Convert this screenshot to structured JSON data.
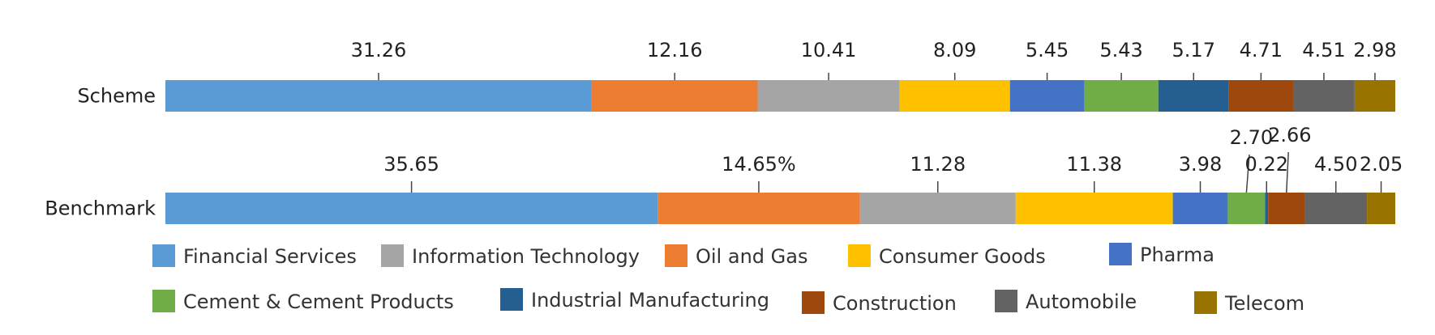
{
  "chart_data": {
    "type": "bar",
    "orientation": "horizontal",
    "stacked": true,
    "categories": [
      "Scheme",
      "Benchmark"
    ],
    "series": [
      {
        "name": "Financial Services",
        "color": "#5B9BD5",
        "values": [
          31.26,
          35.65
        ]
      },
      {
        "name": "Oil and Gas",
        "color": "#ED7D31",
        "values": [
          12.16,
          14.65
        ]
      },
      {
        "name": "Information Technology",
        "color": "#A5A5A5",
        "values": [
          10.41,
          11.28
        ]
      },
      {
        "name": "Consumer Goods",
        "color": "#FFC000",
        "values": [
          8.09,
          11.38
        ]
      },
      {
        "name": "Pharma",
        "color": "#4472C4",
        "values": [
          5.45,
          3.98
        ]
      },
      {
        "name": "Cement & Cement Products",
        "color": "#70AD47",
        "values": [
          5.43,
          2.7
        ]
      },
      {
        "name": "Industrial Manufacturing",
        "color": "#255E91",
        "values": [
          5.17,
          0.22
        ]
      },
      {
        "name": "Construction",
        "color": "#9E480E",
        "values": [
          4.71,
          2.66
        ]
      },
      {
        "name": "Automobile",
        "color": "#636363",
        "values": [
          4.51,
          4.5
        ]
      },
      {
        "name": "Telecom",
        "color": "#997300",
        "values": [
          2.98,
          2.05
        ]
      }
    ],
    "data_labels": {
      "Scheme": [
        "31.26",
        "12.16",
        "10.41",
        "8.09",
        "5.45",
        "5.43",
        "5.17",
        "4.71",
        "4.51",
        "2.98"
      ],
      "Benchmark": [
        "35.65",
        "14.65%",
        "11.28",
        "11.38",
        "3.98",
        "2.70",
        "0.22",
        "2.66",
        "4.50",
        "2.05"
      ]
    },
    "legend_order": [
      "Financial Services",
      "Information Technology",
      "Oil and Gas",
      "Consumer Goods",
      "Pharma",
      "Cement & Cement Products",
      "Industrial Manufacturing",
      "Construction",
      "Automobile",
      "Telecom"
    ],
    "legend_placement": "bottom",
    "title": "",
    "xlabel": "",
    "ylabel": "",
    "grid": false,
    "axes_visible": false
  }
}
